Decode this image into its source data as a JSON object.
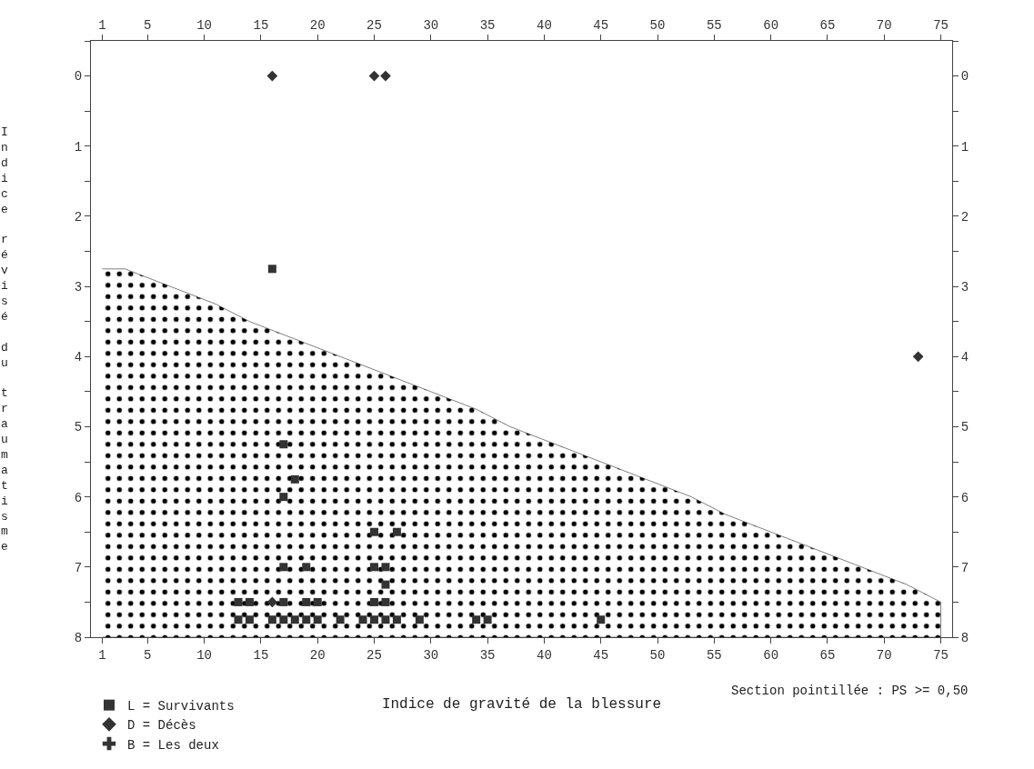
{
  "chart_data": {
    "type": "scatter",
    "xlabel": "Indice de gravité de la blessure",
    "ylabel": "Indice révisé du traumatisme",
    "xlim": [
      0,
      76
    ],
    "xticks": [
      1,
      5,
      10,
      15,
      20,
      25,
      30,
      35,
      40,
      45,
      50,
      55,
      60,
      65,
      70,
      75
    ],
    "x2lim": [
      0,
      76
    ],
    "x2ticks": [
      1,
      5,
      10,
      15,
      20,
      25,
      30,
      35,
      40,
      45,
      50,
      55,
      60,
      65,
      70,
      75
    ],
    "ylim": [
      8,
      -0.5
    ],
    "yticks": [
      {
        "value": -0.5,
        "label": null
      },
      0,
      {
        "value": 0.5,
        "label": null
      },
      1,
      {
        "value": 1.5,
        "label": null
      },
      2,
      {
        "value": 2.5,
        "label": null
      },
      3,
      {
        "value": 3.5,
        "label": null
      },
      4,
      {
        "value": 4.5,
        "label": null
      },
      5,
      {
        "value": 5.5,
        "label": null
      },
      6,
      {
        "value": 6.5,
        "label": null
      },
      7,
      {
        "value": 7.5,
        "label": null
      },
      8
    ],
    "y2lim": [
      8,
      -0.5
    ],
    "y2ticks": [
      {
        "value": -0.5,
        "label": null
      },
      0,
      {
        "value": 0.5,
        "label": null
      },
      1,
      {
        "value": 1.5,
        "label": null
      },
      2,
      {
        "value": 2.5,
        "label": null
      },
      3,
      {
        "value": 3.5,
        "label": null
      },
      4,
      {
        "value": 4.5,
        "label": null
      },
      5,
      {
        "value": 5.5,
        "label": null
      },
      6,
      {
        "value": 6.5,
        "label": null
      },
      7,
      {
        "value": 7.5,
        "label": null
      },
      8
    ],
    "grid": false,
    "legend": "bottom left",
    "series": [
      {
        "type": "area",
        "color": "#000000",
        "x": [
          1,
          3,
          7,
          11,
          14,
          18,
          22,
          26,
          30,
          34,
          37,
          41,
          45,
          49,
          53,
          56,
          60,
          64,
          68,
          72,
          75,
          75,
          75,
          1
        ],
        "values": [
          2.75,
          2.75,
          3,
          3.25,
          3.5,
          3.75,
          4,
          4.25,
          4.5,
          4.75,
          5,
          5.25,
          5.5,
          5.75,
          6,
          6.25,
          6.5,
          6.75,
          7,
          7.25,
          7.5,
          7.75,
          8,
          8
        ]
      },
      {
        "name": "L = Survivants",
        "color": "#333333",
        "marker": "square",
        "x": [
          16,
          17,
          18,
          17,
          25,
          27,
          17,
          19,
          25,
          26,
          26,
          13,
          14,
          17,
          19,
          20,
          25,
          26,
          13,
          14,
          16,
          17,
          18,
          19,
          20,
          22,
          24,
          25,
          26,
          27,
          29,
          34,
          35,
          45
        ],
        "values": [
          2.75,
          5.25,
          5.75,
          6,
          6.5,
          6.5,
          7,
          7,
          7,
          7,
          7.25,
          7.5,
          7.5,
          7.5,
          7.5,
          7.5,
          7.5,
          7.5,
          7.75,
          7.75,
          7.75,
          7.75,
          7.75,
          7.75,
          7.75,
          7.75,
          7.75,
          7.75,
          7.75,
          7.75,
          7.75,
          7.75,
          7.75,
          7.75
        ]
      },
      {
        "name": "D = Décès",
        "color": "#333333",
        "marker": "diamond",
        "x": [
          16,
          25,
          26,
          73,
          16
        ],
        "values": [
          0,
          0,
          0,
          4,
          7.5
        ]
      },
      {
        "name": "B = Les deux",
        "color": "#333333",
        "marker": "cross",
        "x": [
          null
        ],
        "values": [
          null
        ]
      }
    ],
    "annotations": [
      "Section pointillée : PS >= 0,50"
    ]
  }
}
